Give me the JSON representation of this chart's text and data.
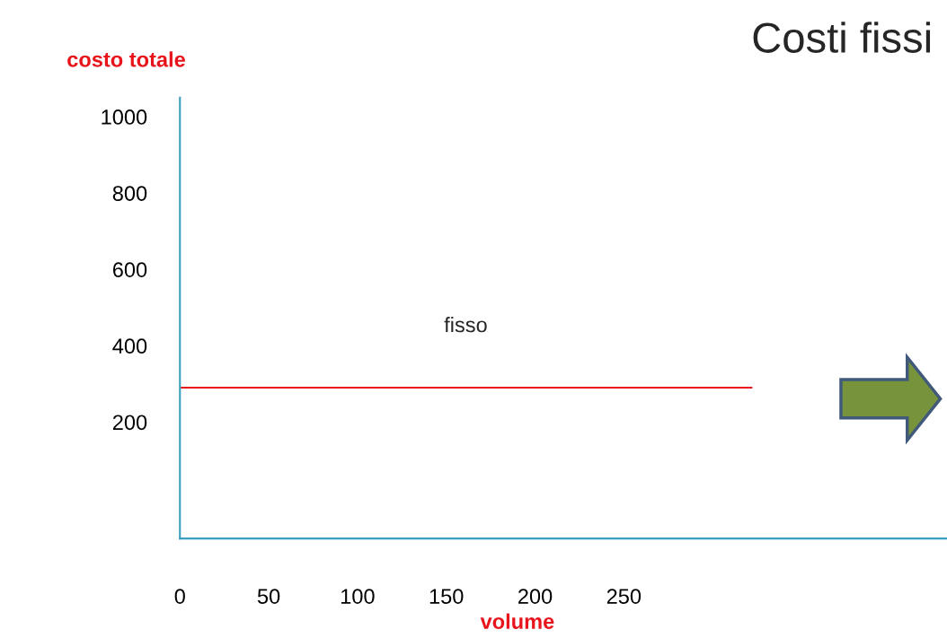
{
  "chart_data": {
    "type": "line",
    "title": "Costi fissi",
    "xlabel": "volume",
    "ylabel": "costo totale",
    "x": [
      0,
      322
    ],
    "series": [
      {
        "name": "fisso",
        "color": "#e8141c",
        "values": [
          290,
          290
        ]
      }
    ],
    "xlim": [
      0,
      432
    ],
    "ylim": [
      -105,
      1050
    ],
    "xticks": [
      0,
      50,
      100,
      150,
      200,
      250
    ],
    "yticks": [
      200,
      400,
      600,
      800,
      1000
    ],
    "grid": false,
    "legend": false,
    "marker": "none",
    "line_style": "solid"
  }
}
